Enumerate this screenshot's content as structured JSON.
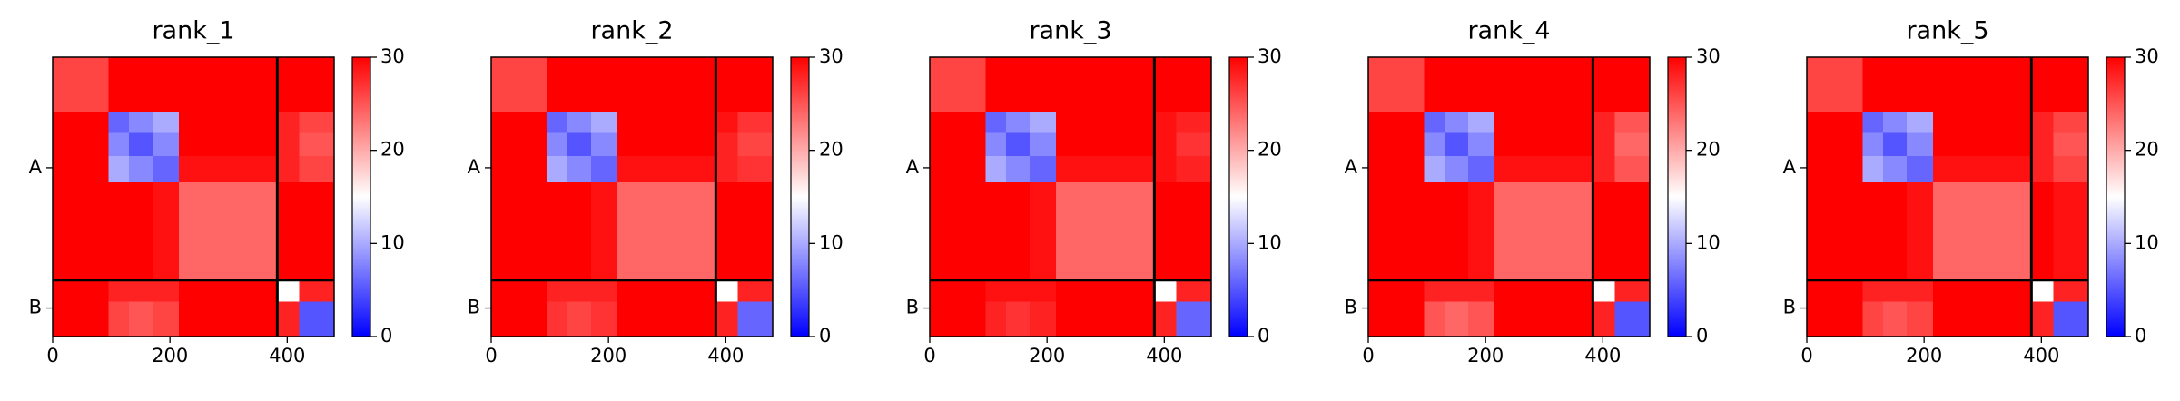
{
  "chart_data": [
    {
      "type": "heatmap",
      "title": "rank_1",
      "bins": [
        0,
        95,
        130,
        170,
        215,
        383,
        420,
        480
      ],
      "values": [
        [
          26,
          30,
          30,
          30,
          30,
          30,
          30
        ],
        [
          30,
          6,
          8,
          10,
          30,
          28,
          26
        ],
        [
          30,
          8,
          5,
          8,
          30,
          28,
          25
        ],
        [
          30,
          10,
          8,
          6,
          29,
          28,
          26
        ],
        [
          30,
          30,
          30,
          29,
          24,
          30,
          30
        ],
        [
          30,
          28,
          28,
          28,
          30,
          15,
          28
        ],
        [
          30,
          26,
          25,
          26,
          30,
          28,
          5
        ]
      ],
      "xlim": [
        0,
        480
      ],
      "xticks": [
        0,
        200,
        400
      ],
      "ylim": [
        480,
        0
      ],
      "yticks": [
        {
          "value": 190,
          "label": "A"
        },
        {
          "value": 431,
          "label": "B"
        }
      ],
      "chain_breaks": [
        383
      ],
      "colormap": "bwr",
      "clim": [
        0,
        30
      ],
      "cticks": [
        0,
        10,
        20,
        30
      ]
    },
    {
      "type": "heatmap",
      "title": "rank_2",
      "bins": [
        0,
        95,
        130,
        170,
        215,
        383,
        420,
        480
      ],
      "values": [
        [
          26,
          30,
          30,
          30,
          30,
          30,
          30
        ],
        [
          30,
          6,
          8,
          10,
          30,
          29,
          27
        ],
        [
          30,
          8,
          5,
          8,
          30,
          28,
          26
        ],
        [
          30,
          10,
          8,
          6,
          29,
          28,
          27
        ],
        [
          30,
          30,
          30,
          29,
          24,
          30,
          30
        ],
        [
          30,
          28,
          28,
          28,
          30,
          15,
          28
        ],
        [
          30,
          27,
          26,
          27,
          30,
          28,
          6
        ]
      ],
      "xlim": [
        0,
        480
      ],
      "xticks": [
        0,
        200,
        400
      ],
      "ylim": [
        480,
        0
      ],
      "yticks": [
        {
          "value": 190,
          "label": "A"
        },
        {
          "value": 431,
          "label": "B"
        }
      ],
      "chain_breaks": [
        383
      ],
      "colormap": "bwr",
      "clim": [
        0,
        30
      ],
      "cticks": [
        0,
        10,
        20,
        30
      ]
    },
    {
      "type": "heatmap",
      "title": "rank_3",
      "bins": [
        0,
        95,
        130,
        170,
        215,
        383,
        420,
        480
      ],
      "values": [
        [
          26,
          30,
          30,
          30,
          30,
          30,
          30
        ],
        [
          30,
          6,
          8,
          10,
          30,
          29,
          28
        ],
        [
          30,
          8,
          5,
          8,
          30,
          29,
          27
        ],
        [
          30,
          10,
          8,
          6,
          29,
          29,
          28
        ],
        [
          30,
          30,
          30,
          29,
          24,
          30,
          30
        ],
        [
          30,
          29,
          29,
          29,
          30,
          15,
          28
        ],
        [
          30,
          28,
          27,
          28,
          30,
          28,
          6
        ]
      ],
      "xlim": [
        0,
        480
      ],
      "xticks": [
        0,
        200,
        400
      ],
      "ylim": [
        480,
        0
      ],
      "yticks": [
        {
          "value": 190,
          "label": "A"
        },
        {
          "value": 431,
          "label": "B"
        }
      ],
      "chain_breaks": [
        383
      ],
      "colormap": "bwr",
      "clim": [
        0,
        30
      ],
      "cticks": [
        0,
        10,
        20,
        30
      ]
    },
    {
      "type": "heatmap",
      "title": "rank_4",
      "bins": [
        0,
        95,
        130,
        170,
        215,
        383,
        420,
        480
      ],
      "values": [
        [
          26,
          30,
          30,
          30,
          30,
          30,
          30
        ],
        [
          30,
          6,
          8,
          10,
          30,
          28,
          25
        ],
        [
          30,
          8,
          5,
          8,
          30,
          28,
          24
        ],
        [
          30,
          10,
          8,
          6,
          29,
          28,
          25
        ],
        [
          30,
          30,
          30,
          29,
          24,
          30,
          30
        ],
        [
          30,
          28,
          28,
          28,
          30,
          15,
          28
        ],
        [
          30,
          25,
          24,
          25,
          30,
          28,
          5
        ]
      ],
      "xlim": [
        0,
        480
      ],
      "xticks": [
        0,
        200,
        400
      ],
      "ylim": [
        480,
        0
      ],
      "yticks": [
        {
          "value": 190,
          "label": "A"
        },
        {
          "value": 431,
          "label": "B"
        }
      ],
      "chain_breaks": [
        383
      ],
      "colormap": "bwr",
      "clim": [
        0,
        30
      ],
      "cticks": [
        0,
        10,
        20,
        30
      ]
    },
    {
      "type": "heatmap",
      "title": "rank_5",
      "bins": [
        0,
        95,
        130,
        170,
        215,
        383,
        420,
        480
      ],
      "values": [
        [
          26,
          30,
          30,
          30,
          30,
          30,
          30
        ],
        [
          30,
          6,
          8,
          10,
          30,
          28,
          26
        ],
        [
          30,
          8,
          5,
          8,
          30,
          28,
          25
        ],
        [
          30,
          10,
          8,
          6,
          29,
          28,
          26
        ],
        [
          30,
          30,
          30,
          29,
          24,
          30,
          29
        ],
        [
          30,
          28,
          28,
          28,
          30,
          15,
          28
        ],
        [
          30,
          26,
          25,
          26,
          30,
          28,
          5
        ]
      ],
      "xlim": [
        0,
        480
      ],
      "xticks": [
        0,
        200,
        400
      ],
      "ylim": [
        480,
        0
      ],
      "yticks": [
        {
          "value": 190,
          "label": "A"
        },
        {
          "value": 431,
          "label": "B"
        }
      ],
      "chain_breaks": [
        383
      ],
      "colormap": "bwr",
      "clim": [
        0,
        30
      ],
      "cticks": [
        0,
        10,
        20,
        30
      ]
    }
  ]
}
